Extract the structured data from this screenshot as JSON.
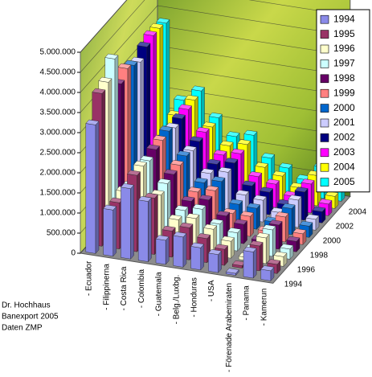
{
  "chart_data": {
    "type": "bar3d",
    "categories": [
      "- Ecuador",
      "- Filippinerna",
      "- Costa Rica",
      "- Colombia",
      "- Guatemala",
      "- Belg./Luxbg.",
      "- Honduras",
      "- USA",
      "- Förenade Arabemiraten",
      "- Panama",
      "- Kamerun"
    ],
    "series": [
      {
        "name": "1994",
        "color": "#8a8ae8",
        "values": [
          3200000,
          1150000,
          1750000,
          1500000,
          600000,
          750000,
          550000,
          450000,
          50000,
          650000,
          250000
        ]
      },
      {
        "name": "1995",
        "color": "#993366",
        "values": [
          3800000,
          1150000,
          1900000,
          1400000,
          650000,
          800000,
          600000,
          400000,
          60000,
          620000,
          230000
        ]
      },
      {
        "name": "1996",
        "color": "#ffffcc",
        "values": [
          3900000,
          1250000,
          1950000,
          1300000,
          750000,
          850000,
          650000,
          420000,
          80000,
          640000,
          240000
        ]
      },
      {
        "name": "1997",
        "color": "#ccffff",
        "values": [
          4300000,
          1200000,
          1900000,
          1400000,
          800000,
          900000,
          600000,
          450000,
          100000,
          660000,
          250000
        ]
      },
      {
        "name": "1998",
        "color": "#660066",
        "values": [
          3500000,
          1150000,
          2000000,
          1450000,
          850000,
          950000,
          620000,
          480000,
          150000,
          600000,
          260000
        ]
      },
      {
        "name": "1999",
        "color": "#ff8080",
        "values": [
          3700000,
          1200000,
          2050000,
          1500000,
          900000,
          1000000,
          500000,
          500000,
          200000,
          620000,
          270000
        ]
      },
      {
        "name": "2000",
        "color": "#0066cc",
        "values": [
          3600000,
          1300000,
          2100000,
          1550000,
          950000,
          1050000,
          550000,
          520000,
          250000,
          650000,
          280000
        ]
      },
      {
        "name": "2001",
        "color": "#ccccff",
        "values": [
          3500000,
          1350000,
          2000000,
          1500000,
          1000000,
          1100000,
          600000,
          540000,
          300000,
          680000,
          270000
        ]
      },
      {
        "name": "2002",
        "color": "#000080",
        "values": [
          3700000,
          1450000,
          2050000,
          1550000,
          1050000,
          1150000,
          650000,
          560000,
          320000,
          700000,
          280000
        ]
      },
      {
        "name": "2003",
        "color": "#ff00ff",
        "values": [
          3800000,
          1500000,
          2100000,
          1600000,
          1100000,
          1200000,
          700000,
          580000,
          350000,
          720000,
          290000
        ]
      },
      {
        "name": "2004",
        "color": "#ffff00",
        "values": [
          3800000,
          1700000,
          2150000,
          1550000,
          1150000,
          1250000,
          750000,
          600000,
          380000,
          750000,
          300000
        ]
      },
      {
        "name": "2005",
        "color": "#00ffff",
        "values": [
          3750000,
          1900000,
          2200000,
          1600000,
          1200000,
          1300000,
          800000,
          620000,
          400000,
          780000,
          310000
        ]
      }
    ],
    "depth_labels": [
      "1994",
      "1996",
      "1998",
      "2000",
      "2002",
      "2004"
    ],
    "ylim": [
      0,
      5000000
    ],
    "yticks": [
      0,
      {
        "value": 500000,
        "label": "500.000"
      },
      {
        "value": 1000000,
        "label": "1.000.000"
      },
      {
        "value": 1500000,
        "label": "1.500.000"
      },
      {
        "value": 2000000,
        "label": "2.000.000"
      },
      {
        "value": 2500000,
        "label": "2.500.000"
      },
      {
        "value": 3000000,
        "label": "3.000.000"
      },
      {
        "value": 3500000,
        "label": "3.500.000"
      },
      {
        "value": 4000000,
        "label": "4.000.000"
      },
      {
        "value": 4500000,
        "label": "4.500.000"
      },
      {
        "value": 5000000,
        "label": "5.000.000"
      }
    ],
    "grid": true,
    "legend": "right",
    "notes": [
      "Dr. Hochhaus",
      "Banexport 2005",
      "Daten ZMP"
    ]
  }
}
